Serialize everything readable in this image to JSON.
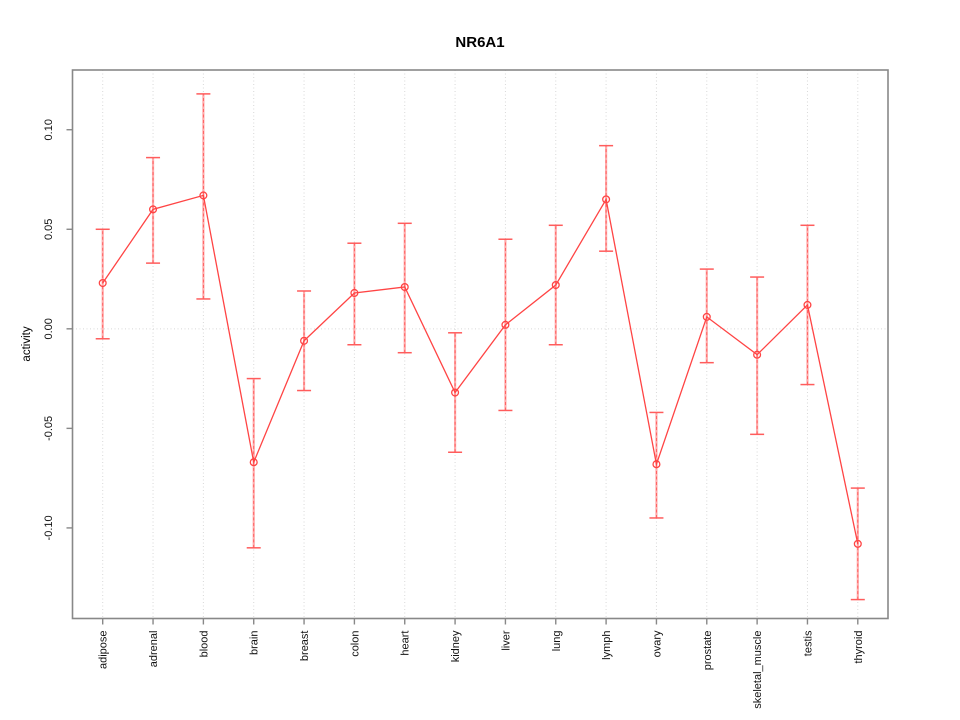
{
  "chart_data": {
    "type": "line",
    "title": "NR6A1",
    "xlabel": "",
    "ylabel": "activity",
    "categories": [
      "adipose",
      "adrenal",
      "blood",
      "brain",
      "breast",
      "colon",
      "heart",
      "kidney",
      "liver",
      "lung",
      "lymph",
      "ovary",
      "prostate",
      "skeletal_muscle",
      "testis",
      "thyroid"
    ],
    "series": [
      {
        "name": "activity",
        "values": [
          0.023,
          0.06,
          0.067,
          -0.067,
          -0.006,
          0.018,
          0.021,
          -0.032,
          0.002,
          0.022,
          0.065,
          -0.068,
          0.006,
          -0.013,
          0.012,
          -0.108
        ],
        "error_low": [
          -0.005,
          0.033,
          0.015,
          -0.11,
          -0.031,
          -0.008,
          -0.012,
          -0.062,
          -0.041,
          -0.008,
          0.039,
          -0.095,
          -0.017,
          -0.053,
          -0.028,
          -0.136
        ],
        "error_high": [
          0.05,
          0.086,
          0.118,
          -0.025,
          0.019,
          0.043,
          0.053,
          -0.002,
          0.045,
          0.052,
          0.092,
          -0.042,
          0.03,
          0.026,
          0.052,
          -0.08
        ]
      }
    ],
    "yticks": [
      0.1,
      0.05,
      0.0,
      -0.05,
      -0.1
    ],
    "ytick_labels": [
      "0.10",
      "0.05",
      "0.00",
      "-0.05",
      "-0.10"
    ],
    "ylim": [
      -0.1455,
      0.13
    ],
    "grid": "vertical-dotted",
    "zero_line": true,
    "legend": "none",
    "marker": "open-circle",
    "colors": {
      "series": "#ff4444",
      "error_bar": "#ffabab",
      "cap": "#ff5c5c",
      "grid": "#d8d8d8",
      "frame": "#888888",
      "text": "#000000",
      "background": "#ffffff"
    }
  }
}
